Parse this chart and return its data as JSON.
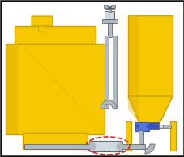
{
  "bg_color": "#e8e8e8",
  "yellow": "#F5C800",
  "yellow_dark": "#C8A000",
  "yellow_shad": "#E0B000",
  "gray_pipe": "#B0B8C0",
  "gray_dark": "#606870",
  "gray_light": "#D0D8E0",
  "blue": "#3355BB",
  "blue_light": "#5577DD",
  "white": "#FFFFFF",
  "red": "#DD2222",
  "border": "#111111"
}
